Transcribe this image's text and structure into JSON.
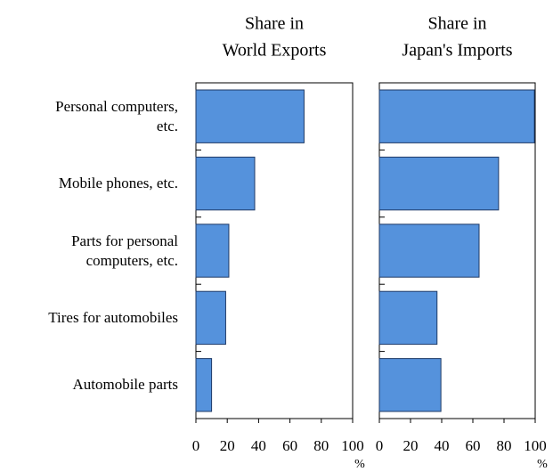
{
  "chart_data": [
    {
      "type": "hbar",
      "title": [
        "Share in",
        "World Exports"
      ],
      "categories": [
        "Personal computers,\netc.",
        "Mobile phones, etc.",
        "Parts for personal\ncomputers, etc.",
        "Tires for automobiles",
        "Automobile parts"
      ],
      "values": [
        69,
        37.5,
        21,
        19,
        10
      ],
      "color": "#5592dc",
      "xlim": [
        0,
        100
      ],
      "xticks": [
        0,
        20,
        40,
        60,
        80,
        100
      ],
      "xlabel": "%"
    },
    {
      "type": "hbar",
      "title": [
        "Share in",
        "Japan's Imports"
      ],
      "values": [
        99.5,
        76.5,
        64,
        37,
        39.5
      ],
      "color": "#5592dc",
      "xlim": [
        0,
        100
      ],
      "xticks": [
        0,
        20,
        40,
        60,
        80,
        100
      ],
      "xlabel": "%"
    }
  ]
}
